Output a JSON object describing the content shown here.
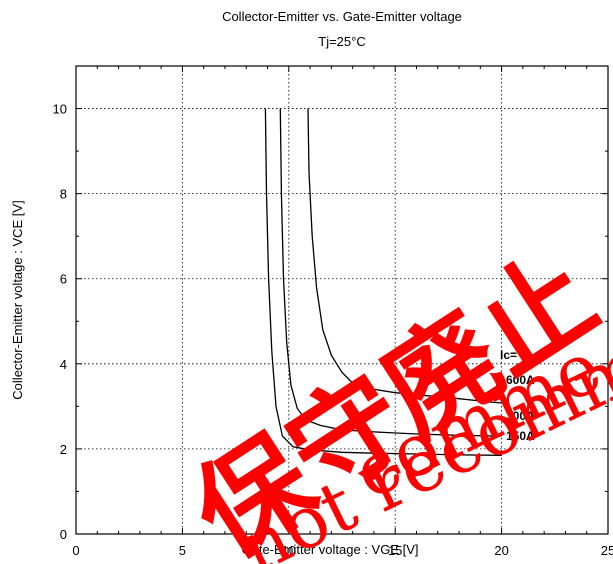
{
  "chart_data": {
    "type": "line",
    "title": "Collector-Emitter  vs.  Gate-Emitter  voltage",
    "subtitle": "Tj=25°C",
    "xlabel": "Gate-Emitter  voltage  :  VGE [V]",
    "ylabel": "Collector-Emitter  voltage  :   VCE [V]",
    "xlim": [
      0,
      25
    ],
    "ylim": [
      0,
      11
    ],
    "xticks": [
      0,
      5,
      10,
      15,
      20,
      25
    ],
    "yticks": [
      0,
      2,
      4,
      6,
      8,
      10
    ],
    "xtick_labels": [
      "0",
      "5",
      "10",
      "15",
      "20",
      "25"
    ],
    "ytick_labels": [
      "0",
      "2",
      "4",
      "6",
      "8",
      "10"
    ],
    "grid": true,
    "legend_title": "Ic=",
    "series": [
      {
        "name": "600A",
        "x": [
          10.9,
          10.95,
          11.1,
          11.3,
          11.6,
          12.0,
          12.5,
          13.0,
          14.0,
          15.0,
          16.5,
          18.0,
          19.5,
          20.0
        ],
        "y": [
          10.0,
          8.5,
          7.0,
          5.8,
          4.8,
          4.2,
          3.8,
          3.55,
          3.4,
          3.32,
          3.25,
          3.18,
          3.1,
          3.08
        ]
      },
      {
        "name": "300A",
        "x": [
          9.6,
          9.65,
          9.75,
          9.9,
          10.1,
          10.4,
          10.8,
          11.5,
          12.5,
          14.0,
          16.0,
          18.0,
          20.0
        ],
        "y": [
          10.0,
          8.0,
          6.0,
          4.5,
          3.5,
          2.95,
          2.68,
          2.55,
          2.45,
          2.4,
          2.35,
          2.32,
          2.3
        ]
      },
      {
        "name": "150A",
        "x": [
          8.9,
          8.95,
          9.05,
          9.2,
          9.4,
          9.7,
          10.2,
          11.0,
          12.5,
          14.0,
          16.0,
          18.0,
          20.0
        ],
        "y": [
          10.0,
          8.0,
          6.0,
          4.3,
          3.0,
          2.3,
          2.05,
          1.98,
          1.92,
          1.9,
          1.88,
          1.86,
          1.85
        ]
      }
    ]
  },
  "watermark": {
    "chinese": "保守廃止",
    "english_top": "comme",
    "english_bottom": "not recomm",
    "color": "#ff0000"
  }
}
